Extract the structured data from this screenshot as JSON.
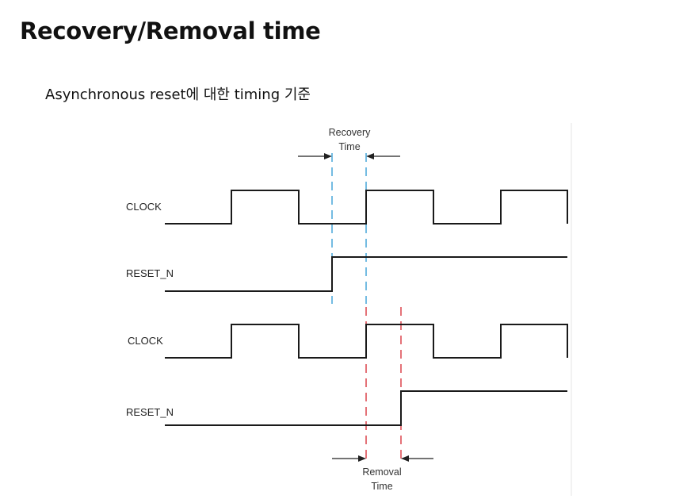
{
  "page": {
    "title": "Recovery/Removal time",
    "subtitle": "Asynchronous reset에 대한 timing 기준"
  },
  "diagram": {
    "recovery_label_line1": "Recovery",
    "recovery_label_line2": "Time",
    "removal_label_line1": "Removal",
    "removal_label_line2": "Time",
    "signals": {
      "clock_top": "CLOCK",
      "reset_top": "RESET_N",
      "clock_bottom": "CLOCK",
      "reset_bottom": "RESET_N"
    },
    "colors": {
      "waveform": "#1a1a1a",
      "recovery_marker": "#3a9fd6",
      "removal_marker": "#d9363e"
    }
  }
}
